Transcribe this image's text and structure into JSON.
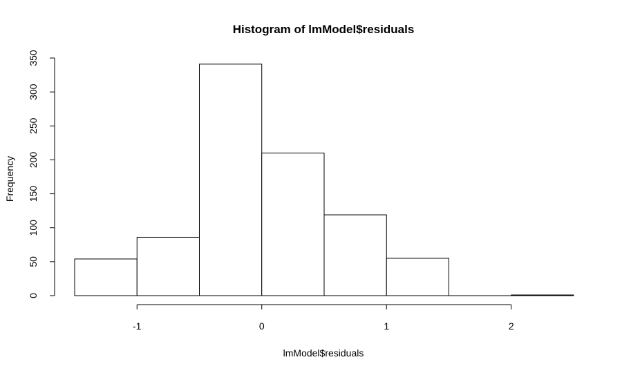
{
  "chart_data": {
    "type": "bar",
    "title": "Histogram of lmModel$residuals",
    "xlabel": "lmModel$residuals",
    "ylabel": "Frequency",
    "bins": [
      {
        "from": -1.5,
        "to": -1.0,
        "count": 54
      },
      {
        "from": -1.0,
        "to": -0.5,
        "count": 86
      },
      {
        "from": -0.5,
        "to": 0.0,
        "count": 341
      },
      {
        "from": 0.0,
        "to": 0.5,
        "count": 210
      },
      {
        "from": 0.5,
        "to": 1.0,
        "count": 119
      },
      {
        "from": 1.0,
        "to": 1.5,
        "count": 55
      },
      {
        "from": 1.5,
        "to": 2.0,
        "count": 0
      },
      {
        "from": 2.0,
        "to": 2.5,
        "count": 1
      }
    ],
    "x_ticks": [
      -1,
      0,
      1,
      2
    ],
    "x_tick_labels": [
      "-1",
      "0",
      "1",
      "2"
    ],
    "y_ticks": [
      0,
      50,
      100,
      150,
      200,
      250,
      300,
      350
    ],
    "y_tick_labels": [
      "0",
      "50",
      "100",
      "150",
      "200",
      "250",
      "300",
      "350"
    ],
    "xlim": [
      -1.5,
      2.5
    ],
    "ylim": [
      0,
      350
    ],
    "grid": false,
    "legend": "none",
    "colors": {
      "bar_fill": "#ffffff",
      "bar_stroke": "#000000",
      "axis": "#000000"
    }
  }
}
